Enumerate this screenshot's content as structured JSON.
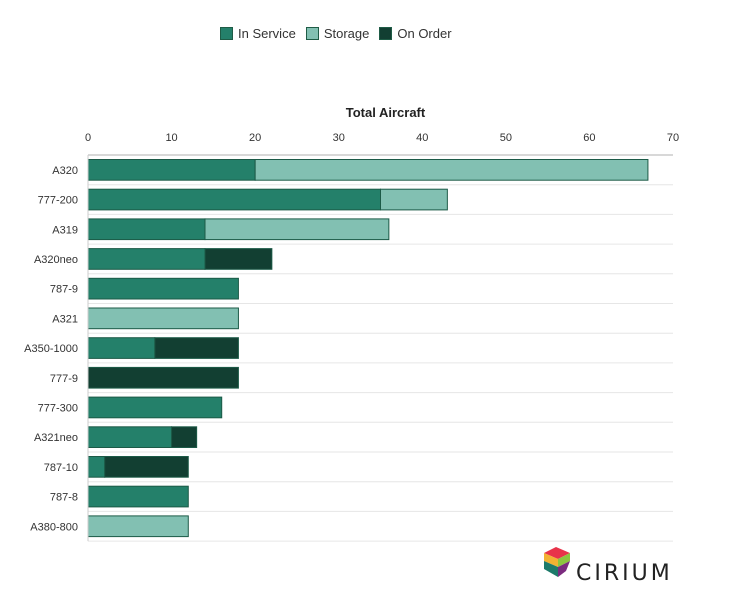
{
  "legend": [
    {
      "label": "In Service",
      "color": "#24806a"
    },
    {
      "label": "Storage",
      "color": "#82c0b2"
    },
    {
      "label": "On Order",
      "color": "#123f32"
    }
  ],
  "brand": {
    "name": "CIRIUM"
  },
  "chart_data": {
    "type": "bar",
    "orientation": "horizontal",
    "stacked": true,
    "title": "Total Aircraft",
    "xlim": [
      0,
      70
    ],
    "xticks": [
      0,
      10,
      20,
      30,
      40,
      50,
      60,
      70
    ],
    "grid": true,
    "legend_position": "top",
    "categories": [
      "A320",
      "777-200",
      "A319",
      "A320neo",
      "787-9",
      "A321",
      "A350-1000",
      "777-9",
      "777-300",
      "A321neo",
      "787-10",
      "787-8",
      "A380-800"
    ],
    "series": [
      {
        "name": "In Service",
        "color": "#24806a",
        "values": [
          20,
          35,
          14,
          14,
          18,
          0,
          8,
          0,
          16,
          10,
          2,
          12,
          0
        ]
      },
      {
        "name": "Storage",
        "color": "#82c0b2",
        "values": [
          47,
          8,
          22,
          0,
          0,
          18,
          0,
          0,
          0,
          0,
          0,
          0,
          12
        ]
      },
      {
        "name": "On Order",
        "color": "#123f32",
        "values": [
          0,
          0,
          0,
          8,
          0,
          0,
          10,
          18,
          0,
          3,
          10,
          0,
          0
        ]
      }
    ]
  }
}
